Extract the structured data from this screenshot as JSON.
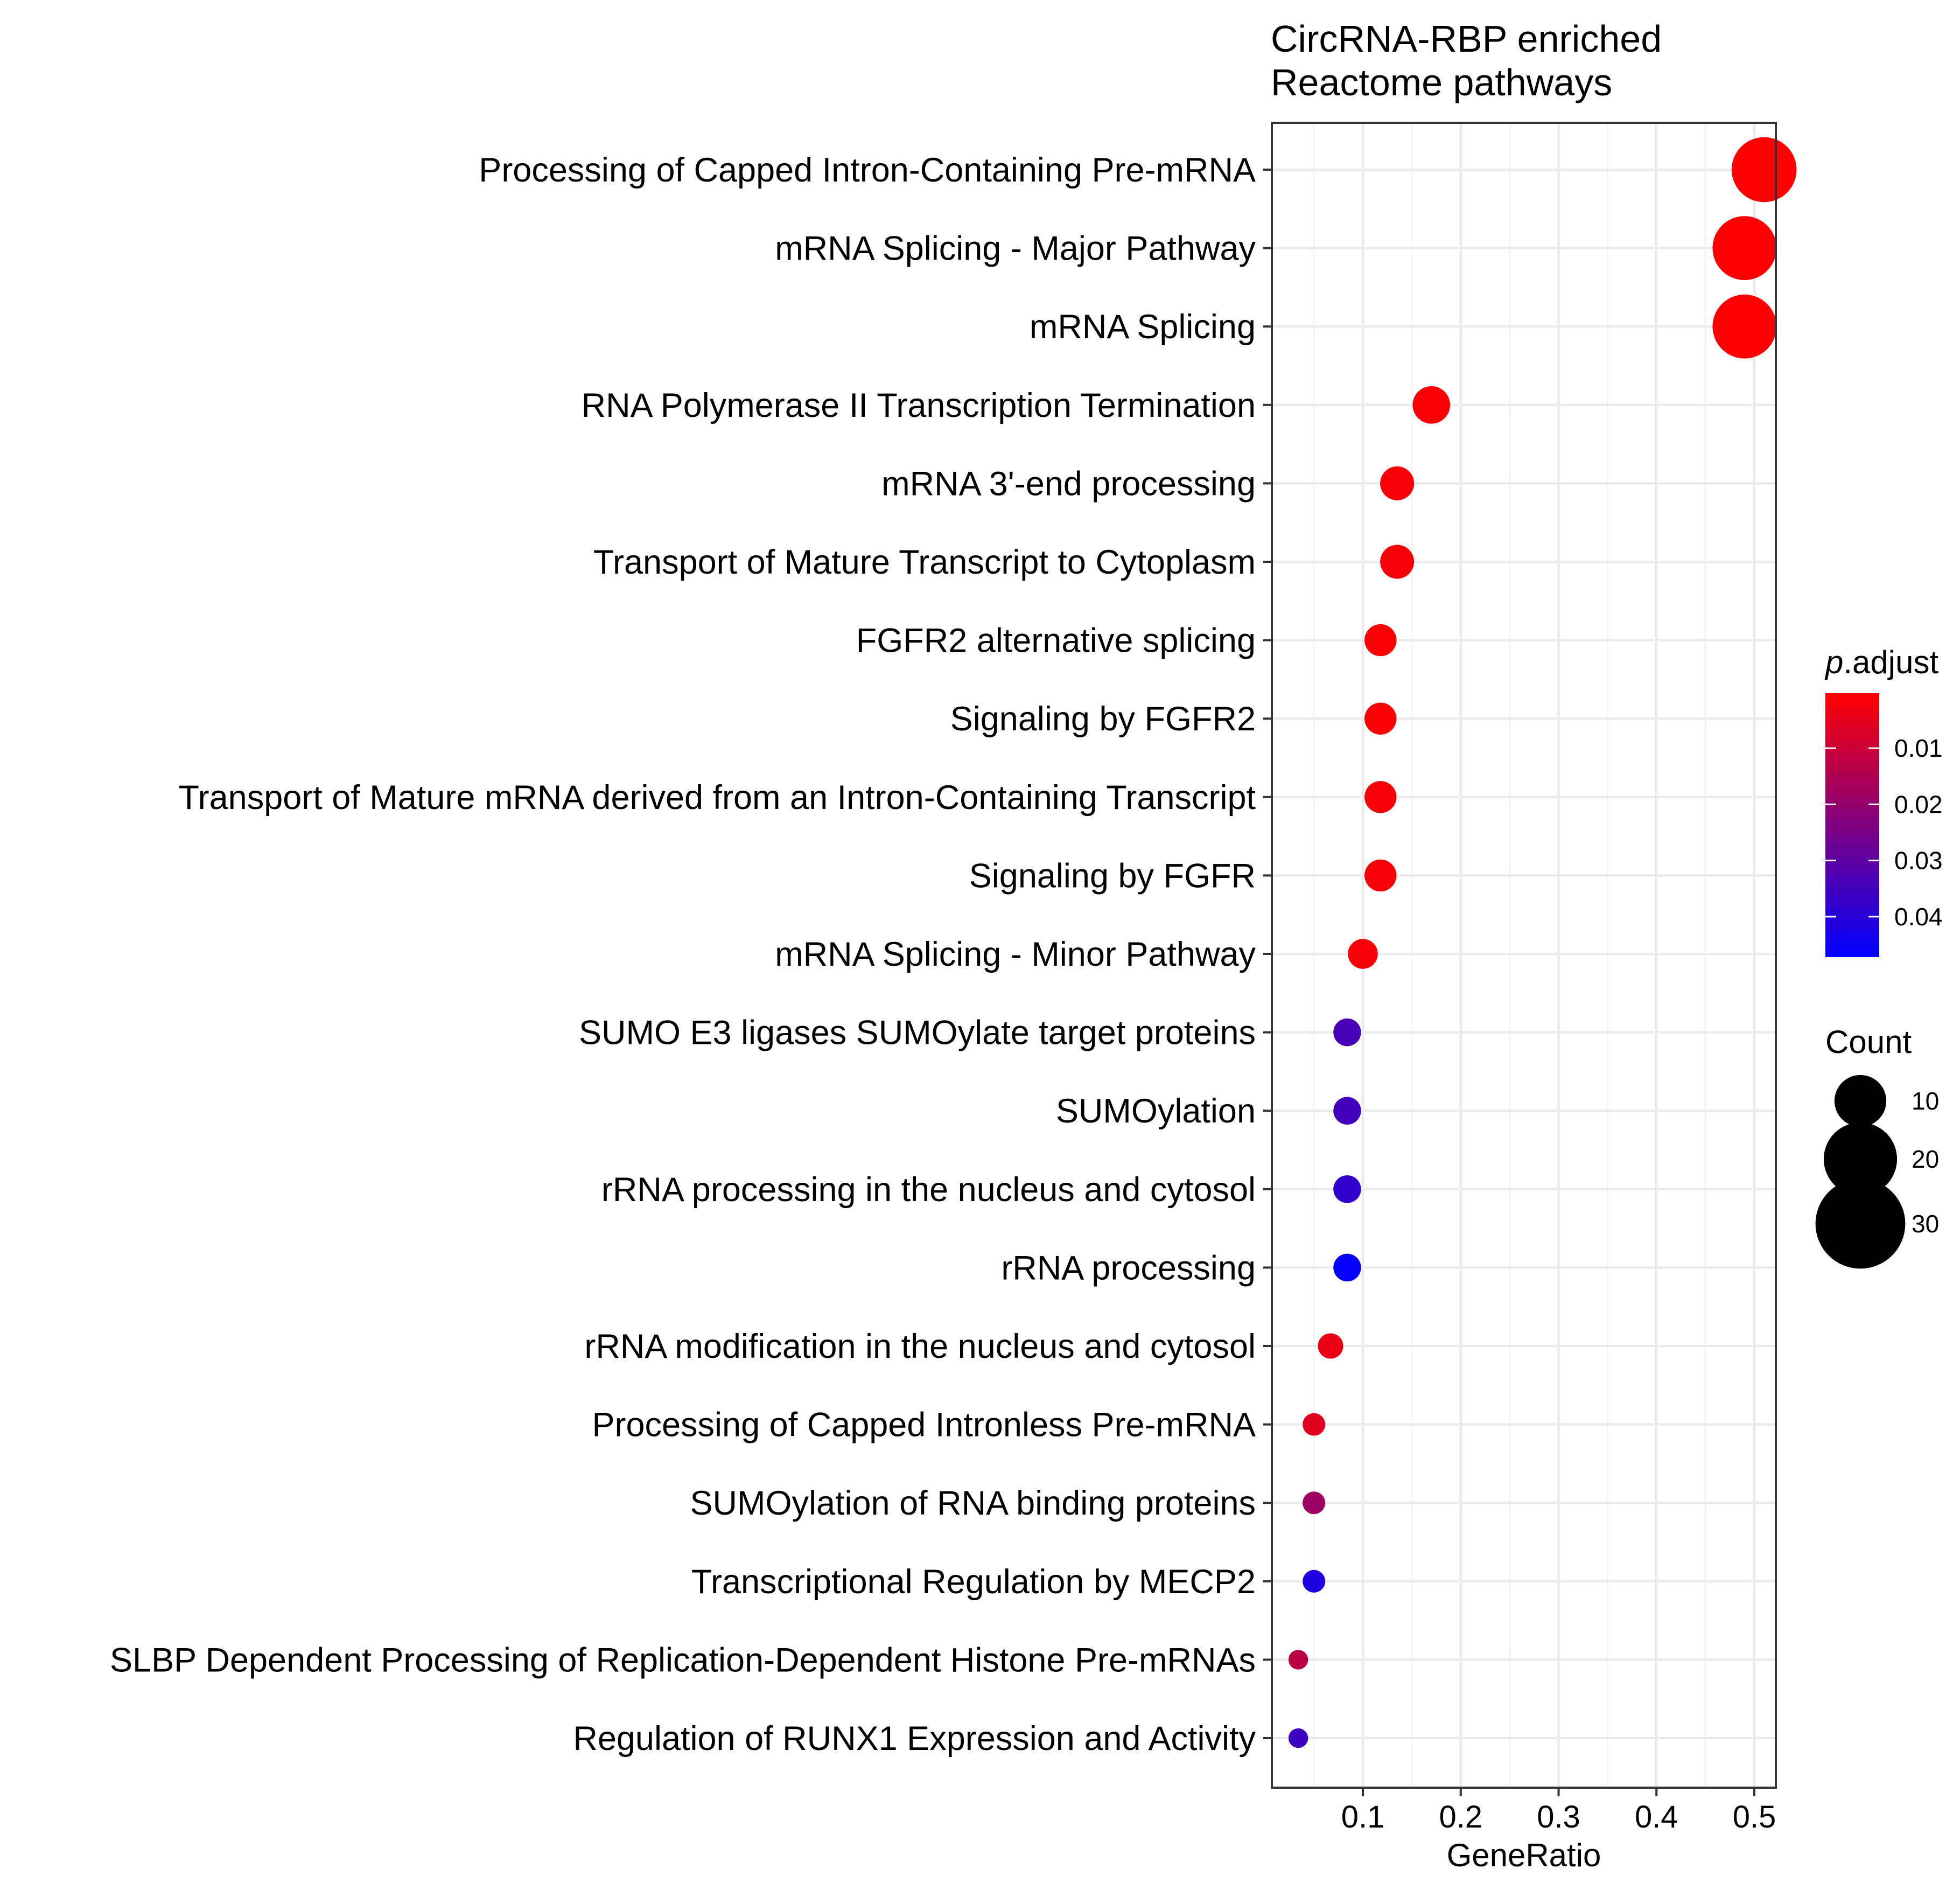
{
  "chart_data": {
    "type": "scatter",
    "title_lines": [
      "CircRNA-RBP enriched",
      "Reactome pathways"
    ],
    "xlabel": "GeneRatio",
    "ylabel": "",
    "xlim": [
      0.007,
      0.522
    ],
    "x_ticks": [
      {
        "value": 0.1,
        "label": "0.1"
      },
      {
        "value": 0.2,
        "label": "0.2"
      },
      {
        "value": 0.3,
        "label": "0.3"
      },
      {
        "value": 0.4,
        "label": "0.4"
      },
      {
        "value": 0.5,
        "label": "0.5"
      }
    ],
    "grid": true,
    "color_scale": {
      "low_color": "#0000ff",
      "high_color": "#ff0000",
      "domain": [
        0.0002,
        0.0472
      ]
    },
    "points": [
      {
        "label": "Processing of Capped Intron-Containing Pre-mRNA",
        "gene_ratio": 0.51,
        "count": 33,
        "p_adjust": 0.0003
      },
      {
        "label": "mRNA Splicing - Major Pathway",
        "gene_ratio": 0.49,
        "count": 32,
        "p_adjust": 0.0003
      },
      {
        "label": "mRNA Splicing",
        "gene_ratio": 0.49,
        "count": 32,
        "p_adjust": 0.0003
      },
      {
        "label": "RNA Polymerase II Transcription Termination",
        "gene_ratio": 0.17,
        "count": 11,
        "p_adjust": 0.0009
      },
      {
        "label": "mRNA 3'-end processing",
        "gene_ratio": 0.135,
        "count": 9,
        "p_adjust": 0.0015
      },
      {
        "label": "Transport of Mature Transcript to Cytoplasm",
        "gene_ratio": 0.135,
        "count": 9,
        "p_adjust": 0.0015
      },
      {
        "label": "FGFR2 alternative splicing",
        "gene_ratio": 0.118,
        "count": 8,
        "p_adjust": 0.0012
      },
      {
        "label": "Signaling by FGFR2",
        "gene_ratio": 0.118,
        "count": 8,
        "p_adjust": 0.0012
      },
      {
        "label": "Transport of Mature mRNA derived from an Intron-Containing Transcript",
        "gene_ratio": 0.118,
        "count": 8,
        "p_adjust": 0.0015
      },
      {
        "label": "Signaling by FGFR",
        "gene_ratio": 0.118,
        "count": 8,
        "p_adjust": 0.0015
      },
      {
        "label": "mRNA Splicing - Minor Pathway",
        "gene_ratio": 0.1,
        "count": 7,
        "p_adjust": 0.0017
      },
      {
        "label": "SUMO E3 ligases SUMOylate target proteins",
        "gene_ratio": 0.084,
        "count": 6,
        "p_adjust": 0.034
      },
      {
        "label": "SUMOylation",
        "gene_ratio": 0.084,
        "count": 6,
        "p_adjust": 0.035
      },
      {
        "label": "rRNA processing in the nucleus and cytosol",
        "gene_ratio": 0.084,
        "count": 6,
        "p_adjust": 0.038
      },
      {
        "label": "rRNA processing",
        "gene_ratio": 0.084,
        "count": 6,
        "p_adjust": 0.0465
      },
      {
        "label": "rRNA modification in the nucleus and cytosol",
        "gene_ratio": 0.067,
        "count": 5,
        "p_adjust": 0.004
      },
      {
        "label": "Processing of Capped Intronless Pre-mRNA",
        "gene_ratio": 0.05,
        "count": 4,
        "p_adjust": 0.006
      },
      {
        "label": "SUMOylation of RNA binding proteins",
        "gene_ratio": 0.05,
        "count": 4,
        "p_adjust": 0.018
      },
      {
        "label": "Transcriptional Regulation by MECP2",
        "gene_ratio": 0.05,
        "count": 4,
        "p_adjust": 0.0415
      },
      {
        "label": "SLBP Dependent Processing of Replication-Dependent Histone Pre-mRNAs",
        "gene_ratio": 0.034,
        "count": 3,
        "p_adjust": 0.013
      },
      {
        "label": "Regulation of RUNX1 Expression and Activity",
        "gene_ratio": 0.034,
        "count": 3,
        "p_adjust": 0.036
      }
    ],
    "legends": {
      "color": {
        "title": ".adjust",
        "title_italic_prefix": "p",
        "ticks": [
          {
            "value": 0.01,
            "label": "0.01"
          },
          {
            "value": 0.02,
            "label": "0.02"
          },
          {
            "value": 0.03,
            "label": "0.03"
          },
          {
            "value": 0.04,
            "label": "0.04"
          }
        ]
      },
      "size": {
        "title": "Count",
        "entries": [
          {
            "count": 10,
            "label": "10"
          },
          {
            "count": 20,
            "label": "20"
          },
          {
            "count": 30,
            "label": "30"
          }
        ]
      }
    }
  }
}
